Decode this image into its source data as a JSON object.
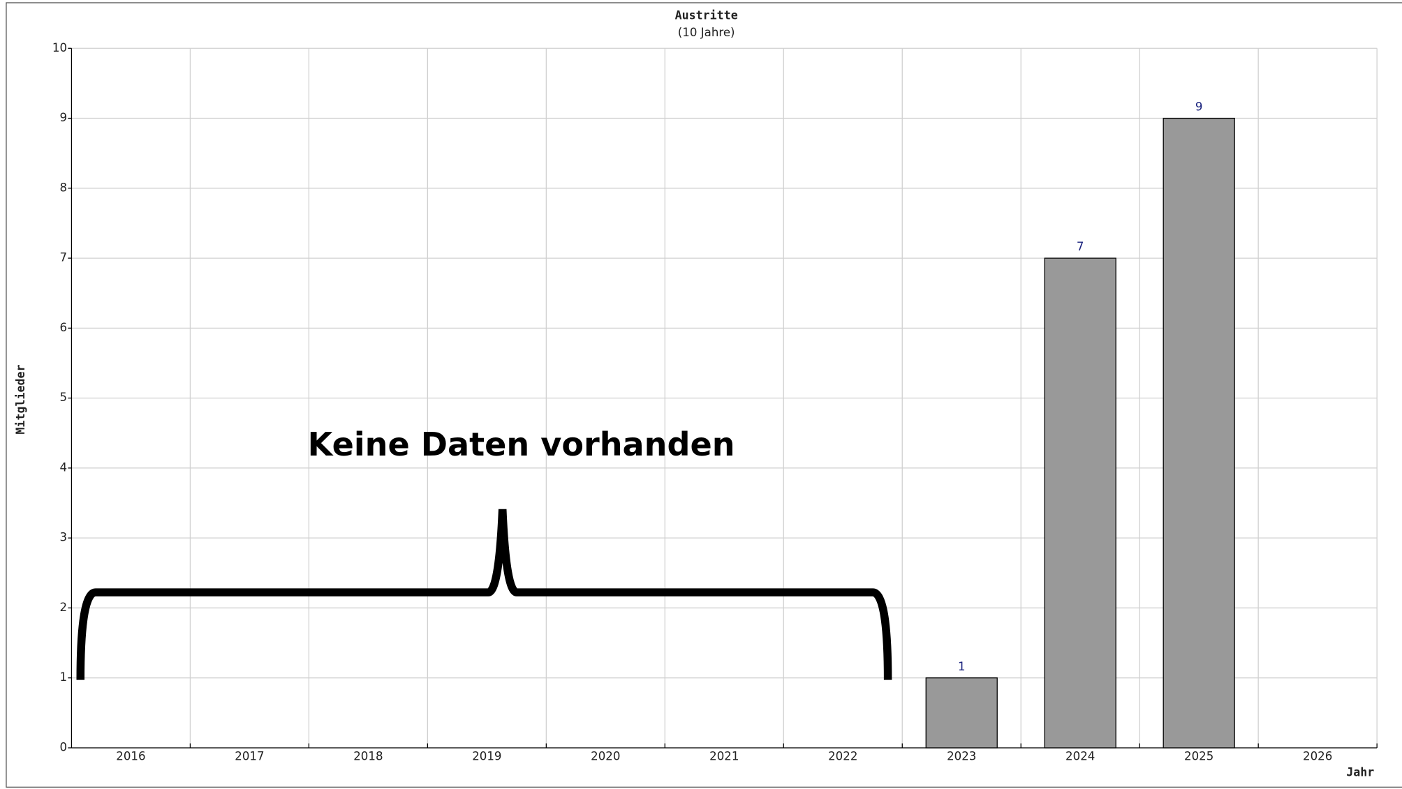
{
  "chart_data": {
    "type": "bar",
    "title": "Austritte",
    "subtitle": "(10 Jahre)",
    "y_label": "Mitglieder",
    "x_label": "Jahr",
    "annotation": "Keine Daten vorhanden",
    "categories": [
      "2016",
      "2017",
      "2018",
      "2019",
      "2020",
      "2021",
      "2022",
      "2023",
      "2024",
      "2025",
      "2026"
    ],
    "values": [
      null,
      null,
      null,
      null,
      null,
      null,
      null,
      1,
      7,
      9,
      null
    ],
    "color": "#999999",
    "value_label_color": "#1a237e",
    "ylim": [
      0,
      10
    ],
    "yticks": [
      0,
      1,
      2,
      3,
      4,
      5,
      6,
      7,
      8,
      9,
      10
    ],
    "grid": true
  }
}
